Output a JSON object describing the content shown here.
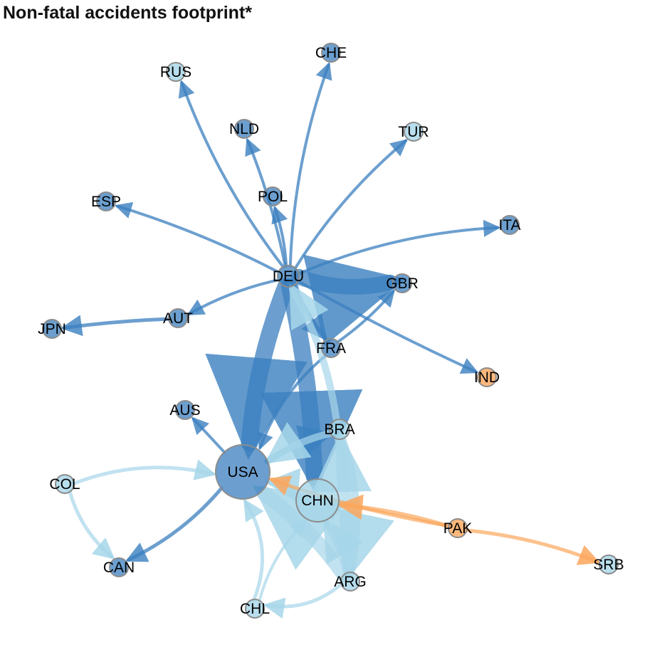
{
  "title": "Non-fatal accidents footprint*",
  "colors": {
    "dark_blue": "#3b7fbf",
    "light_blue": "#a6d6e9",
    "orange": "#fba65c",
    "node_stroke": "#8c8c8c"
  },
  "nodes": [
    {
      "id": "DEU",
      "label": "DEU",
      "group": "dark_blue"
    },
    {
      "id": "USA",
      "label": "USA",
      "group": "dark_blue"
    },
    {
      "id": "CHN",
      "label": "CHN",
      "group": "light_blue"
    },
    {
      "id": "BRA",
      "label": "BRA",
      "group": "light_blue"
    },
    {
      "id": "ARG",
      "label": "ARG",
      "group": "light_blue"
    },
    {
      "id": "CHL",
      "label": "CHL",
      "group": "light_blue"
    },
    {
      "id": "COL",
      "label": "COL",
      "group": "light_blue"
    },
    {
      "id": "CAN",
      "label": "CAN",
      "group": "dark_blue"
    },
    {
      "id": "AUS",
      "label": "AUS",
      "group": "dark_blue"
    },
    {
      "id": "FRA",
      "label": "FRA",
      "group": "dark_blue"
    },
    {
      "id": "GBR",
      "label": "GBR",
      "group": "dark_blue"
    },
    {
      "id": "IND",
      "label": "IND",
      "group": "orange"
    },
    {
      "id": "PAK",
      "label": "PAK",
      "group": "orange"
    },
    {
      "id": "SRB",
      "label": "SRB",
      "group": "light_blue"
    },
    {
      "id": "AUT",
      "label": "AUT",
      "group": "dark_blue"
    },
    {
      "id": "JPN",
      "label": "JPN",
      "group": "dark_blue"
    },
    {
      "id": "ESP",
      "label": "ESP",
      "group": "dark_blue"
    },
    {
      "id": "POL",
      "label": "POL",
      "group": "dark_blue"
    },
    {
      "id": "NLD",
      "label": "NLD",
      "group": "dark_blue"
    },
    {
      "id": "RUS",
      "label": "RUS",
      "group": "light_blue"
    },
    {
      "id": "CHE",
      "label": "CHE",
      "group": "dark_blue"
    },
    {
      "id": "TUR",
      "label": "TUR",
      "group": "light_blue"
    },
    {
      "id": "ITA",
      "label": "ITA",
      "group": "dark_blue"
    }
  ],
  "edges": [
    {
      "from": "DEU",
      "to": "GBR",
      "group": "dark_blue"
    },
    {
      "from": "DEU",
      "to": "USA",
      "group": "dark_blue"
    },
    {
      "from": "DEU",
      "to": "CHN",
      "group": "dark_blue"
    },
    {
      "from": "DEU",
      "to": "FRA",
      "group": "dark_blue"
    },
    {
      "from": "DEU",
      "to": "IND",
      "group": "dark_blue"
    },
    {
      "from": "DEU",
      "to": "AUT",
      "group": "dark_blue"
    },
    {
      "from": "DEU",
      "to": "ESP",
      "group": "dark_blue"
    },
    {
      "from": "DEU",
      "to": "POL",
      "group": "dark_blue"
    },
    {
      "from": "DEU",
      "to": "NLD",
      "group": "dark_blue"
    },
    {
      "from": "DEU",
      "to": "RUS",
      "group": "dark_blue"
    },
    {
      "from": "DEU",
      "to": "CHE",
      "group": "dark_blue"
    },
    {
      "from": "DEU",
      "to": "TUR",
      "group": "dark_blue"
    },
    {
      "from": "DEU",
      "to": "ITA",
      "group": "dark_blue"
    },
    {
      "from": "AUT",
      "to": "JPN",
      "group": "dark_blue"
    },
    {
      "from": "FRA",
      "to": "GBR",
      "group": "dark_blue"
    },
    {
      "from": "FRA",
      "to": "USA",
      "group": "dark_blue"
    },
    {
      "from": "USA",
      "to": "AUS",
      "group": "dark_blue"
    },
    {
      "from": "USA",
      "to": "CAN",
      "group": "dark_blue"
    },
    {
      "from": "USA",
      "to": "BRA",
      "group": "dark_blue"
    },
    {
      "from": "BRA",
      "to": "DEU",
      "group": "light_blue"
    },
    {
      "from": "BRA",
      "to": "USA",
      "group": "light_blue"
    },
    {
      "from": "BRA",
      "to": "ARG",
      "group": "light_blue"
    },
    {
      "from": "ARG",
      "to": "USA",
      "group": "light_blue"
    },
    {
      "from": "ARG",
      "to": "BRA",
      "group": "light_blue"
    },
    {
      "from": "ARG",
      "to": "CHN",
      "group": "light_blue"
    },
    {
      "from": "ARG",
      "to": "CHL",
      "group": "light_blue"
    },
    {
      "from": "CHL",
      "to": "USA",
      "group": "light_blue"
    },
    {
      "from": "CHL",
      "to": "CHN",
      "group": "light_blue"
    },
    {
      "from": "CHN",
      "to": "USA",
      "group": "light_blue"
    },
    {
      "from": "COL",
      "to": "USA",
      "group": "light_blue"
    },
    {
      "from": "COL",
      "to": "CAN",
      "group": "light_blue"
    },
    {
      "from": "PAK",
      "to": "CHN",
      "group": "orange"
    },
    {
      "from": "PAK",
      "to": "USA",
      "group": "orange"
    },
    {
      "from": "PAK",
      "to": "SRB",
      "group": "orange"
    }
  ]
}
